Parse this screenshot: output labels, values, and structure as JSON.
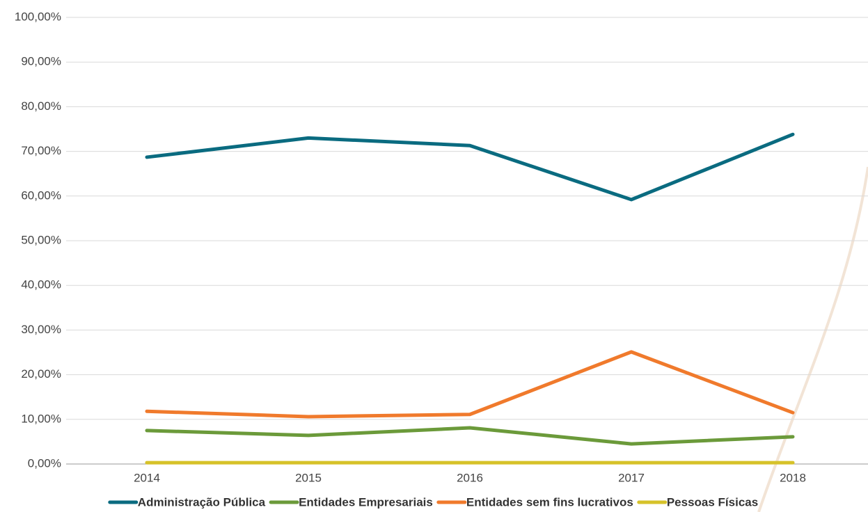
{
  "chart_data": {
    "type": "line",
    "categories": [
      "2014",
      "2015",
      "2016",
      "2017",
      "2018"
    ],
    "series": [
      {
        "name": "Administração Pública",
        "color": "#0a6b80",
        "values": [
          68.7,
          73.0,
          71.3,
          59.2,
          73.8
        ]
      },
      {
        "name": "Entidades Empresariais",
        "color": "#6b9a3a",
        "values": [
          7.5,
          6.4,
          8.1,
          4.5,
          6.1
        ]
      },
      {
        "name": "Entidades sem fins lucrativos",
        "color": "#f07a2c",
        "values": [
          11.8,
          10.6,
          11.1,
          25.1,
          11.5
        ]
      },
      {
        "name": "Pessoas Físicas",
        "color": "#d6c22a",
        "values": [
          0.3,
          0.3,
          0.3,
          0.3,
          0.3
        ]
      }
    ],
    "ylim": [
      0,
      100
    ],
    "yticks": [
      {
        "value": 0,
        "label": "0,00%"
      },
      {
        "value": 10,
        "label": "10,00%"
      },
      {
        "value": 20,
        "label": "20,00%"
      },
      {
        "value": 30,
        "label": "30,00%"
      },
      {
        "value": 40,
        "label": "40,00%"
      },
      {
        "value": 50,
        "label": "50,00%"
      },
      {
        "value": 60,
        "label": "60,00%"
      },
      {
        "value": 70,
        "label": "70,00%"
      },
      {
        "value": 80,
        "label": "80,00%"
      },
      {
        "value": 90,
        "label": "90,00%"
      },
      {
        "value": 100,
        "label": "100,00%"
      }
    ],
    "grid": true,
    "legend": "bottom"
  }
}
